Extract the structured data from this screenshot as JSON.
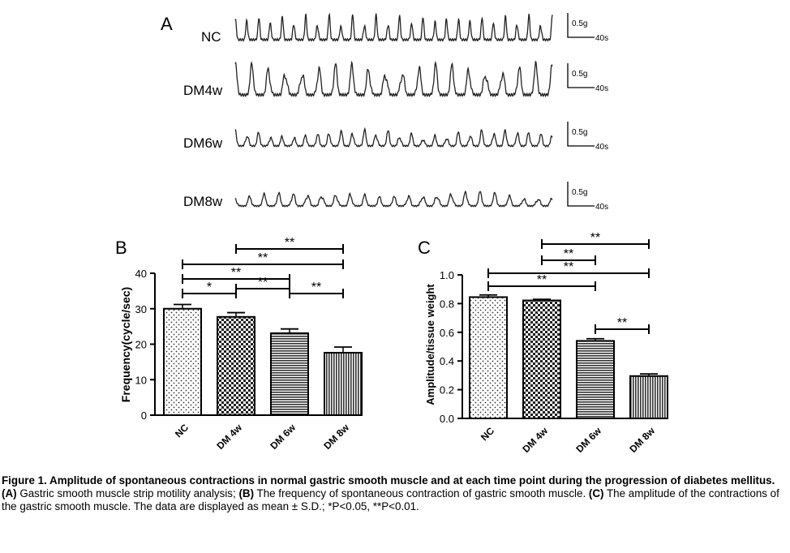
{
  "panel_a": {
    "letter": "A",
    "traces": [
      {
        "label": "NC",
        "scale_amp": "0.5g",
        "scale_time": "40s"
      },
      {
        "label": "DM4w",
        "scale_amp": "0.5g",
        "scale_time": "40s"
      },
      {
        "label": "DM6w",
        "scale_amp": "0.5g",
        "scale_time": "40s"
      },
      {
        "label": "DM8w",
        "scale_amp": "0.5g",
        "scale_time": "40s"
      }
    ]
  },
  "chart_data": [
    {
      "type": "bar",
      "panel": "B",
      "ylabel": "Frequency(cycle/sec)",
      "categories": [
        "NC",
        "DM 4w",
        "DM 6w",
        "DM 8w"
      ],
      "values": [
        30.0,
        27.7,
        23.1,
        17.6
      ],
      "errors": [
        1.2,
        1.2,
        1.2,
        1.6
      ],
      "ylim": [
        0,
        40
      ],
      "yticks": [
        "0",
        "10",
        "20",
        "30",
        "40"
      ],
      "grid": false,
      "significance": [
        {
          "from": 0,
          "to": 1,
          "label": "*"
        },
        {
          "from": 1,
          "to": 2,
          "label": "**"
        },
        {
          "from": 2,
          "to": 3,
          "label": "**"
        },
        {
          "from": 0,
          "to": 2,
          "label": "**"
        },
        {
          "from": 0,
          "to": 3,
          "label": "**"
        },
        {
          "from": 1,
          "to": 3,
          "label": "**"
        }
      ]
    },
    {
      "type": "bar",
      "panel": "C",
      "ylabel": "Amplitude/tissue weight",
      "categories": [
        "NC",
        "DM 4w",
        "DM 6w",
        "DM 8w"
      ],
      "values": [
        0.845,
        0.822,
        0.54,
        0.295
      ],
      "errors": [
        0.015,
        0.008,
        0.015,
        0.015
      ],
      "ylim": [
        0,
        1.0
      ],
      "yticks": [
        "0.0",
        "0.2",
        "0.4",
        "0.6",
        "0.8",
        "1.0"
      ],
      "grid": false,
      "significance": [
        {
          "from": 2,
          "to": 3,
          "label": "**"
        },
        {
          "from": 0,
          "to": 2,
          "label": "**"
        },
        {
          "from": 0,
          "to": 3,
          "label": "**"
        },
        {
          "from": 1,
          "to": 2,
          "label": "**"
        },
        {
          "from": 1,
          "to": 3,
          "label": "**"
        }
      ]
    }
  ],
  "caption": {
    "title": "Figure 1. Amplitude of spontaneous contractions in normal gastric smooth muscle and at each time point during the progression of diabetes mellitus.",
    "parts": [
      {
        "bold": "(A)",
        "text": " Gastric smooth muscle strip motility analysis; "
      },
      {
        "bold": "(B)",
        "text": " The frequency of spontaneous contraction of gastric smooth muscle. "
      },
      {
        "bold": "(C)",
        "text": " The amplitude of the contractions of the gastric smooth muscle. The data are displayed as mean ± S.D.; *P<0.05, **P<0.01."
      }
    ]
  }
}
